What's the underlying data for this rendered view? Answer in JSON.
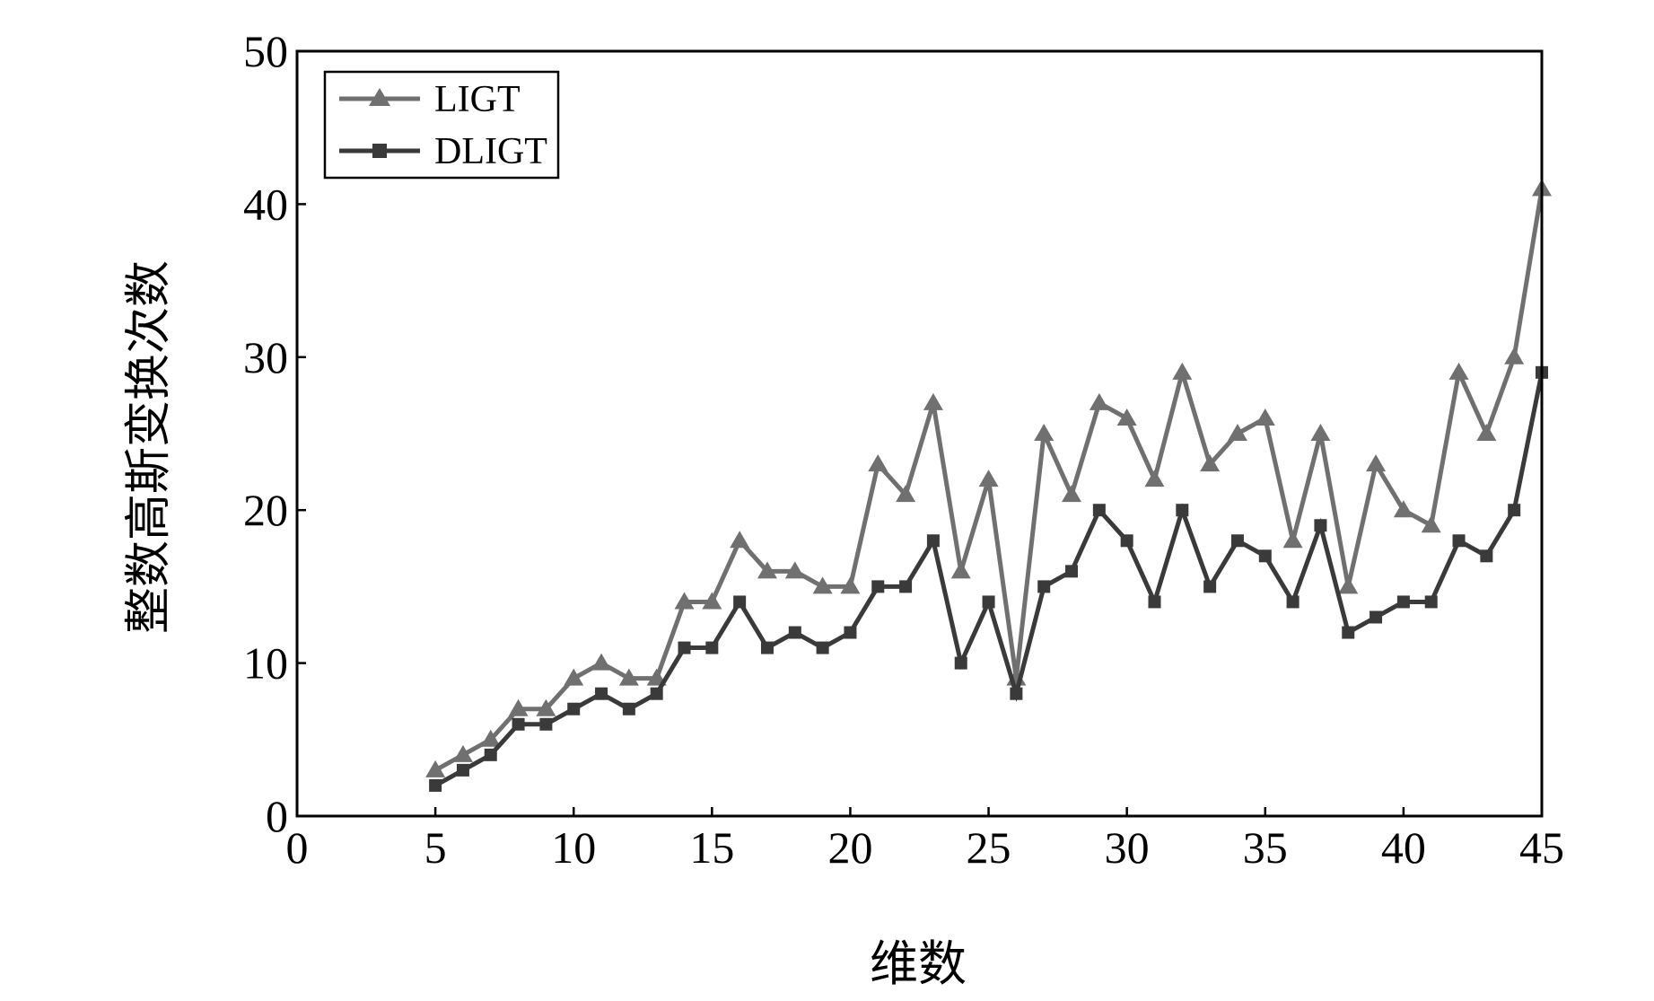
{
  "chart_data": {
    "type": "line",
    "title": "",
    "xlabel": "维数",
    "ylabel": "整数高斯变换次数",
    "xlim": [
      0,
      45
    ],
    "ylim": [
      0,
      50
    ],
    "xticks": [
      "0",
      "5",
      "10",
      "15",
      "20",
      "25",
      "30",
      "35",
      "40",
      "45"
    ],
    "yticks": [
      "0",
      "10",
      "20",
      "30",
      "40",
      "50"
    ],
    "grid": false,
    "legend_position": "top-left",
    "x": [
      5,
      6,
      7,
      8,
      9,
      10,
      11,
      12,
      13,
      14,
      15,
      16,
      17,
      18,
      19,
      20,
      21,
      22,
      23,
      24,
      25,
      26,
      27,
      28,
      29,
      30,
      31,
      32,
      33,
      34,
      35,
      36,
      37,
      38,
      39,
      40,
      41,
      42,
      43,
      44,
      45
    ],
    "series": [
      {
        "name": "LIGT",
        "marker": "triangle",
        "color": "#707070",
        "values": [
          3,
          4,
          5,
          7,
          7,
          9,
          10,
          9,
          9,
          14,
          14,
          18,
          16,
          16,
          15,
          15,
          23,
          21,
          27,
          16,
          22,
          9,
          25,
          21,
          27,
          26,
          22,
          29,
          23,
          25,
          26,
          18,
          25,
          15,
          23,
          20,
          19,
          29,
          25,
          30,
          41
        ]
      },
      {
        "name": "DLIGT",
        "marker": "square",
        "color": "#3a3a3a",
        "values": [
          2,
          3,
          4,
          6,
          6,
          7,
          8,
          7,
          8,
          11,
          11,
          14,
          11,
          12,
          11,
          12,
          15,
          15,
          18,
          10,
          14,
          8,
          15,
          16,
          20,
          18,
          14,
          20,
          15,
          18,
          17,
          14,
          19,
          12,
          13,
          14,
          14,
          18,
          17,
          20,
          29
        ]
      }
    ]
  }
}
